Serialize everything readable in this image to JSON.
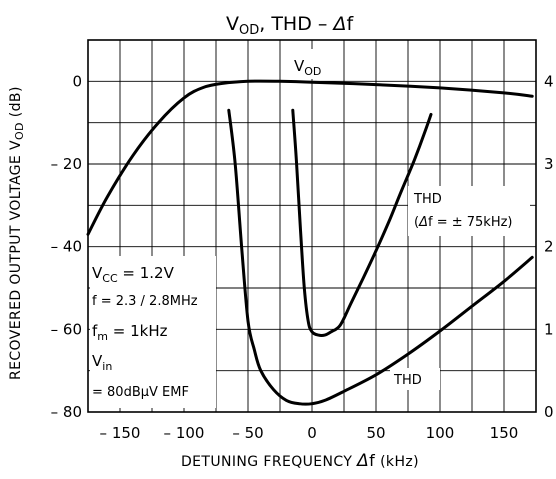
{
  "chart_data": {
    "type": "line",
    "title": "VOD, THD – Δf",
    "xlabel": "DETUNING FREQUENCY   Δf   (kHz)",
    "ylabel": "RECOVERED OUTPUT VOLTAGE   VOD   (dB)",
    "xlim": [
      -175,
      175
    ],
    "ylim": [
      -80,
      10
    ],
    "y2lim": [
      0,
      4.5
    ],
    "x_ticks": [
      -150,
      -100,
      -50,
      0,
      50,
      100,
      150
    ],
    "x_tick_labels": [
      "– 150",
      "– 100",
      "– 50",
      "0",
      "50",
      "100",
      "150"
    ],
    "y_ticks": [
      0,
      -20,
      -40,
      -60,
      -80
    ],
    "y_tick_labels": [
      "0",
      "– 20",
      "– 40",
      "– 60",
      "– 80"
    ],
    "y2_ticks": [
      4,
      3,
      2,
      1,
      0
    ],
    "y2_tick_labels": [
      "4",
      "3",
      "2",
      "1",
      "0"
    ],
    "grid": true,
    "series": [
      {
        "name": "VOD",
        "axis": "left",
        "points": [
          [
            -175,
            -37
          ],
          [
            -160,
            -28
          ],
          [
            -140,
            -18
          ],
          [
            -120,
            -10
          ],
          [
            -100,
            -4
          ],
          [
            -85,
            -1.5
          ],
          [
            -70,
            -0.5
          ],
          [
            -50,
            0
          ],
          [
            -25,
            0
          ],
          [
            0,
            -0.2
          ],
          [
            50,
            -0.8
          ],
          [
            100,
            -1.6
          ],
          [
            150,
            -2.8
          ],
          [
            172,
            -3.6
          ]
        ]
      },
      {
        "name": "THD",
        "axis": "right",
        "points": [
          [
            -65,
            3.65
          ],
          [
            -60,
            3.0
          ],
          [
            -55,
            2.0
          ],
          [
            -50,
            1.1
          ],
          [
            -45,
            0.75
          ],
          [
            -40,
            0.5
          ],
          [
            -30,
            0.27
          ],
          [
            -20,
            0.14
          ],
          [
            -10,
            0.1
          ],
          [
            0,
            0.1
          ],
          [
            10,
            0.14
          ],
          [
            25,
            0.25
          ],
          [
            50,
            0.45
          ],
          [
            75,
            0.7
          ],
          [
            100,
            0.98
          ],
          [
            125,
            1.28
          ],
          [
            150,
            1.58
          ],
          [
            172,
            1.87
          ]
        ]
      },
      {
        "name": "THD (Δf = ±75kHz)",
        "axis": "right",
        "points": [
          [
            -15,
            3.65
          ],
          [
            -12,
            3.0
          ],
          [
            -9,
            2.2
          ],
          [
            -6,
            1.5
          ],
          [
            -3,
            1.1
          ],
          [
            0,
            0.97
          ],
          [
            5,
            0.93
          ],
          [
            10,
            0.93
          ],
          [
            15,
            0.97
          ],
          [
            22,
            1.05
          ],
          [
            30,
            1.3
          ],
          [
            40,
            1.62
          ],
          [
            50,
            1.95
          ],
          [
            60,
            2.3
          ],
          [
            70,
            2.68
          ],
          [
            80,
            3.05
          ],
          [
            88,
            3.38
          ],
          [
            93,
            3.6
          ]
        ]
      }
    ],
    "annotations": {
      "vod_label": "VOD",
      "thd75_line1": "THD",
      "thd75_line2": "(Δf = ± 75kHz)",
      "thd_label": "THD",
      "cond_vcc": "VCC = 1.2V",
      "cond_f": "f = 2.3 / 2.8MHz",
      "cond_fm": "fm = 1kHz",
      "cond_vin": "Vin",
      "cond_emf": "= 80dBμV  EMF"
    }
  }
}
